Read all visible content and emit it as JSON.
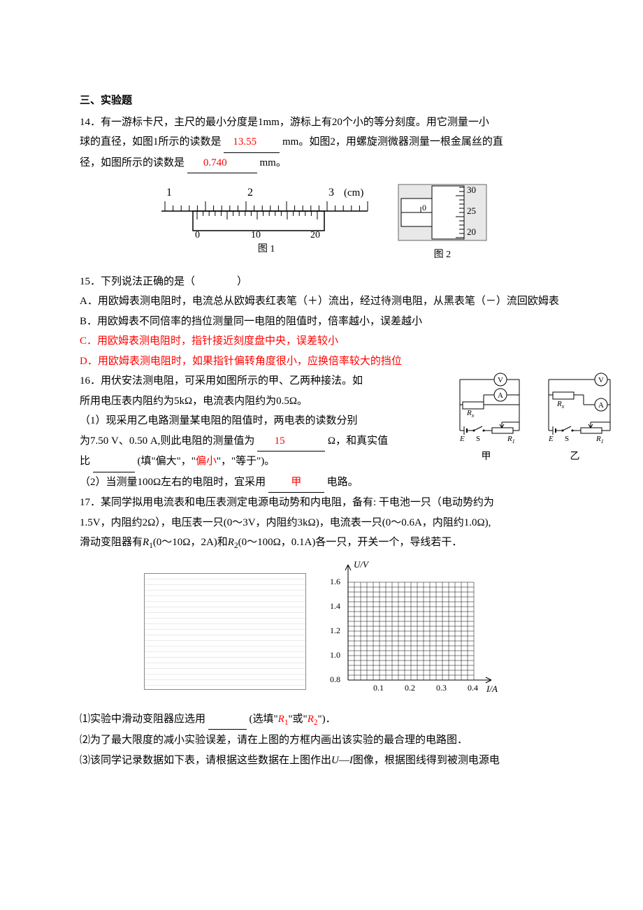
{
  "section": {
    "title": "三、实验题"
  },
  "q14": {
    "line1a": "14．有一游标卡尺，主尺的最小分度是1mm，游标上有20个小的等分刻度。用它测量一小",
    "line2a": "球的直径，如图1所示的读数是",
    "ans1": "13.55",
    "line2b": "mm。如图2，用螺旋测微器测量一根金属丝的直",
    "line3a": "径，如图所示的读数是",
    "ans2": "0.740",
    "line3b": "mm。",
    "fig1_caption": "图 1",
    "fig2_caption": "图 2",
    "vernier": {
      "main_labels": [
        {
          "x": 12,
          "t": "1"
        },
        {
          "x": 128,
          "t": "2"
        },
        {
          "x": 244,
          "t": "3"
        }
      ],
      "unit": "(cm)",
      "vernier_labels": [
        {
          "x": 56,
          "t": "0"
        },
        {
          "x": 140,
          "t": "10"
        },
        {
          "x": 225,
          "t": "20"
        }
      ]
    },
    "micrometer": {
      "scale_labels": [
        "30",
        "25",
        "20"
      ],
      "main_zero": "0"
    }
  },
  "q15": {
    "stem": "15．下列说法正确的是（　　　　）",
    "A": "A．用欧姆表测电阻时，电流总从欧姆表红表笔（＋）流出，经过待测电阻，从黑表笔（－）流回欧姆表",
    "B": "B．用欧姆表不同倍率的挡位测量同一电阻的阻值时，倍率越小，误差越小",
    "C": "C．用欧姆表测电阻时，指针接近刻度盘中央，误差较小",
    "D": "D．用欧姆表测电阻时，如果指针偏转角度很小，应换倍率较大的挡位"
  },
  "q16": {
    "l1": "16．用伏安法测电阻，可采用如图所示的甲、乙两种接法。如",
    "l2": "所用电压表内阻约为5kΩ，电流表内阻约为0.5Ω。",
    "l3a": "（1）现采用乙电路测量某电阻的阻值时，两电表的读数分别",
    "l4a": "为7.50 V、0.50 A,则此电阻的测量值为",
    "ans1": "15",
    "l4b": "Ω，和真实值",
    "l5a": "比",
    "l5b": "(填\"偏大\"，\"",
    "ans_pian": "偏小",
    "l5c": "\"，\"等于\")。",
    "l6a": "（2）当测量100Ω左右的电阻时，宜采用",
    "ans_jia": "甲",
    "l6b": "电路。",
    "label_jia": "甲",
    "label_yi": "乙",
    "symbols": {
      "V": "V",
      "A": "A",
      "Rx": "R",
      "Rx_sub": "x",
      "R1": "R",
      "R1_sub": "1",
      "E": "E",
      "S": "S"
    }
  },
  "q17": {
    "l1": "17．某同学拟用电流表和电压表测定电源电动势和内电阻，备有: 干电池一只（电动势约为",
    "l2a": "1.5V，内阻约2Ω），电压表一只(0～3V，内阻约3kΩ)，电流表一只(0～0.6A，内阻约1.0Ω),",
    "l3a": "滑动变阻器有",
    "l3_R1": "R",
    "l3_R1s": "1",
    "l3_R1spec": "(0～10Ω，2A)和",
    "l3_R2": "R",
    "l3_R2s": "2",
    "l3_R2spec": "(0～100Ω，0.1A)各一只，开关一个，导线若干．",
    "graph": {
      "ylabel": "U/V",
      "xlabel": "I/A",
      "yticks": [
        "1.6",
        "1.4",
        "1.2",
        "1.0",
        "0.8"
      ],
      "xticks": [
        "0.1",
        "0.2",
        "0.3",
        "0.4"
      ]
    },
    "sub1a": "⑴实验中滑动变阻器应选用",
    "sub1b": "(选填\"",
    "sub1_R1": "R",
    "sub1_R1s": "1",
    "sub1c": "\"或\"",
    "sub1_R2": "R",
    "sub1_R2s": "2",
    "sub1d": "\")．",
    "sub2": "⑵为了最大限度的减小实验误差，请在上图的方框内画出该实验的最合理的电路图．",
    "sub3a": "⑶该同学记录数据如下表，请根据这些数据在上图作出",
    "sub3_U": "U",
    "sub3_dash": "—",
    "sub3_I": "I",
    "sub3b": "图像，根据图线得到被测电源电"
  }
}
